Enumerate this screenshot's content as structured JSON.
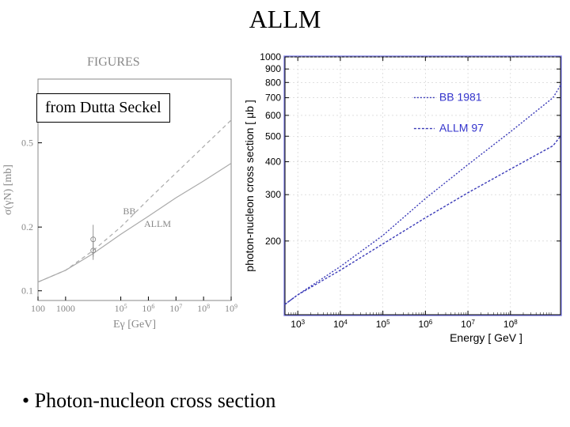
{
  "title": "ALLM",
  "annotation": "from Dutta Seckel",
  "figures_header": "FIGURES",
  "bullet": "Photon-nucleon cross section",
  "left_chart": {
    "type": "line",
    "xlabel": "Eγ   [GeV]",
    "ylabel": "σ(γN)   [mb]",
    "xscale": "log",
    "yscale": "log",
    "xlim": [
      100,
      1000000000.0
    ],
    "ylim": [
      0.09,
      1.0
    ],
    "xticks": [
      100,
      1000,
      100000.0,
      1000000.0,
      10000000.0,
      100000000.0,
      1000000000.0
    ],
    "xtick_labels": [
      "100",
      "1000",
      "10^5",
      "10^6",
      "10^7",
      "10^8",
      "10^9"
    ],
    "yticks": [
      0.1,
      0.2,
      0.5
    ],
    "ytick_labels": [
      "0.1",
      "0.2",
      "0.5"
    ],
    "series": {
      "BB": {
        "label": "BB",
        "style": "dashed",
        "color": "#aaaaaa",
        "x": [
          100,
          1000.0,
          10000.0,
          100000.0,
          1000000.0,
          10000000.0,
          100000000.0,
          1000000000.0
        ],
        "y": [
          0.11,
          0.125,
          0.155,
          0.2,
          0.27,
          0.36,
          0.48,
          0.64
        ]
      },
      "ALLM": {
        "label": "ALLM",
        "style": "solid",
        "color": "#aaaaaa",
        "x": [
          100,
          1000.0,
          10000.0,
          100000.0,
          1000000.0,
          10000000.0,
          100000000.0,
          1000000000.0
        ],
        "y": [
          0.11,
          0.125,
          0.15,
          0.185,
          0.225,
          0.275,
          0.33,
          0.4
        ]
      }
    },
    "data_points": {
      "x": [
        10000.0,
        10000.0
      ],
      "y": [
        0.155,
        0.175
      ],
      "yerr": [
        0.015,
        0.03
      ]
    },
    "legend_pos": {
      "BB": [
        120000.0,
        0.23
      ],
      "ALLM": [
        700000.0,
        0.2
      ]
    },
    "line_width": 1.2,
    "background_color": "#ffffff",
    "axis_color": "#888888"
  },
  "right_chart": {
    "type": "line",
    "xlabel": "Energy [ GeV ]",
    "ylabel": "photon-nucleon cross section [ μb ]",
    "xscale": "log",
    "yscale": "log",
    "xlim": [
      500.0,
      1500000000.0
    ],
    "ylim": [
      105,
      1000
    ],
    "xticks": [
      1000.0,
      10000.0,
      100000.0,
      1000000.0,
      10000000.0,
      100000000.0
    ],
    "xtick_labels": [
      "10^3",
      "10^4",
      "10^5",
      "10^6",
      "10^7",
      "10^8"
    ],
    "yticks": [
      200,
      300,
      400,
      500,
      600,
      700,
      800,
      900,
      1000
    ],
    "ytick_labels": [
      "200",
      "300",
      "400",
      "500",
      "600",
      "700",
      "800",
      "900",
      "1000"
    ],
    "series": {
      "BB1981": {
        "label": "BB 1981",
        "style": "dotted",
        "color": "#3a3ab8",
        "x": [
          500.0,
          1000.0,
          10000.0,
          100000.0,
          1000000.0,
          10000000.0,
          100000000.0,
          1000000000.0,
          1500000000.0
        ],
        "y": [
          115,
          125,
          160,
          210,
          290,
          390,
          520,
          700,
          780
        ]
      },
      "ALLM97": {
        "label": "ALLM 97",
        "style": "dotted",
        "color": "#3a3ab8",
        "x": [
          500.0,
          1000.0,
          10000.0,
          100000.0,
          1000000.0,
          10000000.0,
          100000000.0,
          1000000000.0,
          1500000000.0
        ],
        "y": [
          115,
          125,
          155,
          195,
          245,
          305,
          375,
          460,
          500
        ]
      }
    },
    "legend_pos": {
      "BB1981": [
        0.56,
        0.83
      ],
      "ALLM97": [
        0.56,
        0.71
      ]
    },
    "line_width": 1.4,
    "background_color": "#ffffff",
    "grid_color": "#cccccc",
    "axis_color": "#000000",
    "frame_color": "#8888ee"
  }
}
